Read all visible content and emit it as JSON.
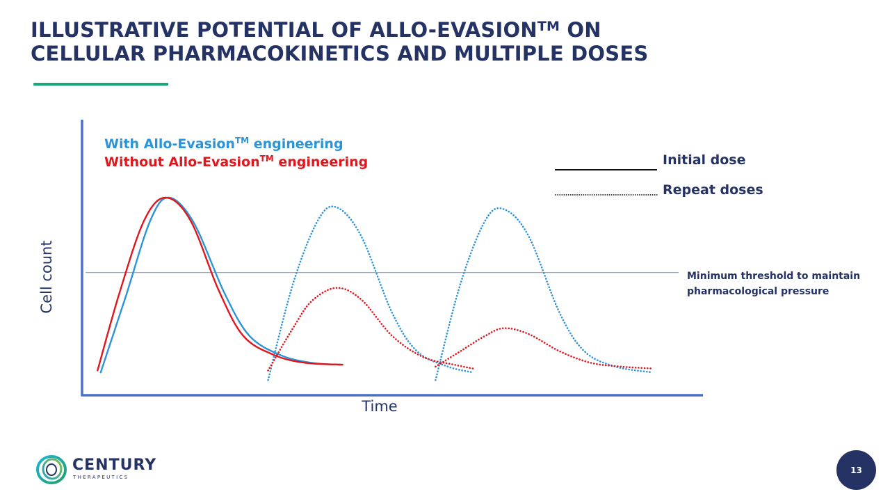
{
  "header": {
    "title_line1": "ILLUSTRATIVE POTENTIAL OF ALLO-EVASION",
    "title_tm": "TM",
    "title_line1_end": " ON",
    "title_line2": "CELLULAR PHARMACOKINETICS AND MULTIPLE DOSES"
  },
  "colors": {
    "title": "#253264",
    "accent": "#1aa67b",
    "axis": "#4a6fc7",
    "with_series": "#2b94d8",
    "without_series": "#e0161c",
    "threshold": "#8ea6d6"
  },
  "chart_data": {
    "type": "line",
    "xlabel": "Time",
    "ylabel": "Cell count",
    "illustrative": true,
    "grid": false,
    "legend": {
      "position": "top-left",
      "entries": [
        {
          "name": "With Allo-Evasion",
          "tm": "TM",
          "suffix": " engineering",
          "color": "#2b94d8"
        },
        {
          "name": "Without Allo-Evasion",
          "tm": "TM",
          "suffix": " engineering",
          "color": "#e0161c"
        }
      ]
    },
    "line_style_legend": {
      "position": "top-right",
      "entries": [
        {
          "label": "Initial dose",
          "style": "solid"
        },
        {
          "label": "Repeat doses",
          "style": "dotted"
        }
      ]
    },
    "threshold": {
      "y": 0.61,
      "label_line1": "Minimum threshold to maintain",
      "label_line2": "pharmacological pressure"
    },
    "xlim": [
      0,
      1
    ],
    "ylim": [
      0,
      1
    ],
    "series": [
      {
        "name": "With Allo-Evasion",
        "dose": "initial",
        "style": "solid",
        "color": "#2b94d8",
        "x": [
          0.03,
          0.07,
          0.11,
          0.14,
          0.18,
          0.23,
          0.27,
          0.32,
          0.37,
          0.42
        ],
        "y": [
          0.09,
          0.48,
          0.88,
          1.0,
          0.87,
          0.5,
          0.28,
          0.18,
          0.14,
          0.13
        ]
      },
      {
        "name": "Without Allo-Evasion",
        "dose": "initial",
        "style": "solid",
        "color": "#e0161c",
        "x": [
          0.025,
          0.06,
          0.1,
          0.135,
          0.175,
          0.22,
          0.26,
          0.31,
          0.36,
          0.42
        ],
        "y": [
          0.1,
          0.5,
          0.88,
          1.0,
          0.88,
          0.52,
          0.28,
          0.18,
          0.14,
          0.13
        ]
      },
      {
        "name": "With Allo-Evasion",
        "dose": "repeat 1",
        "style": "dotted",
        "color": "#2b94d8",
        "x": [
          0.3,
          0.34,
          0.38,
          0.41,
          0.45,
          0.5,
          0.54,
          0.59,
          0.63
        ],
        "y": [
          0.05,
          0.55,
          0.88,
          0.95,
          0.8,
          0.4,
          0.2,
          0.12,
          0.09
        ]
      },
      {
        "name": "Without Allo-Evasion",
        "dose": "repeat 1",
        "style": "dotted",
        "color": "#e0161c",
        "x": [
          0.3,
          0.34,
          0.37,
          0.41,
          0.45,
          0.5,
          0.55,
          0.6,
          0.63
        ],
        "y": [
          0.1,
          0.32,
          0.46,
          0.53,
          0.47,
          0.28,
          0.17,
          0.13,
          0.11
        ]
      },
      {
        "name": "With Allo-Evasion",
        "dose": "repeat 2",
        "style": "dotted",
        "color": "#2b94d8",
        "x": [
          0.57,
          0.61,
          0.65,
          0.68,
          0.72,
          0.77,
          0.81,
          0.86,
          0.92
        ],
        "y": [
          0.05,
          0.55,
          0.88,
          0.94,
          0.8,
          0.4,
          0.2,
          0.12,
          0.09
        ]
      },
      {
        "name": "Without Allo-Evasion",
        "dose": "repeat 2",
        "style": "dotted",
        "color": "#e0161c",
        "x": [
          0.57,
          0.61,
          0.65,
          0.68,
          0.72,
          0.77,
          0.82,
          0.87,
          0.92
        ],
        "y": [
          0.12,
          0.2,
          0.28,
          0.32,
          0.29,
          0.2,
          0.14,
          0.12,
          0.11
        ]
      }
    ]
  },
  "footer": {
    "logo_name": "CENTURY",
    "logo_sub": "THERAPEUTICS",
    "page_number": "13"
  }
}
